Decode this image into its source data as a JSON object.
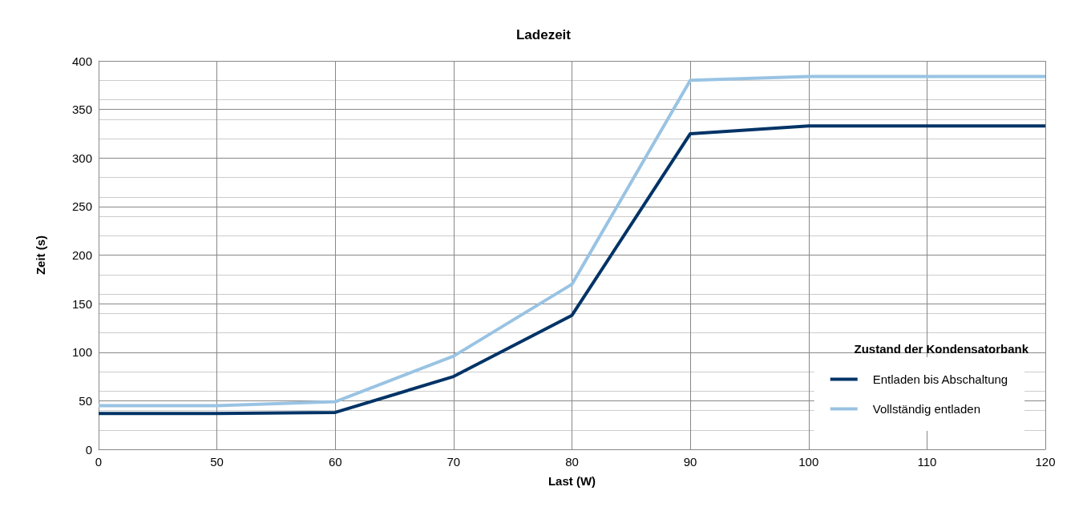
{
  "chart_data": {
    "type": "line",
    "title": "Ladezeit",
    "xlabel": "Last (W)",
    "ylabel": "Zeit (s)",
    "legend_title": "Zustand der Kondensatorbank",
    "categories": [
      "0",
      "50",
      "60",
      "70",
      "80",
      "90",
      "100",
      "110",
      "120"
    ],
    "series": [
      {
        "name": "Entladen bis Abschaltung",
        "color": "#003366",
        "values": [
          37,
          37,
          38,
          75,
          138,
          325,
          333,
          333,
          333
        ]
      },
      {
        "name": "Vollständig entladen",
        "color": "#99c3e3",
        "values": [
          45,
          45,
          49,
          96,
          170,
          380,
          384,
          384,
          384
        ]
      }
    ],
    "ylim": [
      0,
      400
    ],
    "yticks": [
      0,
      50,
      100,
      150,
      200,
      250,
      300,
      350,
      400
    ],
    "grid": true,
    "legend": "bottom right",
    "marker": "none",
    "line_style": "solid"
  }
}
